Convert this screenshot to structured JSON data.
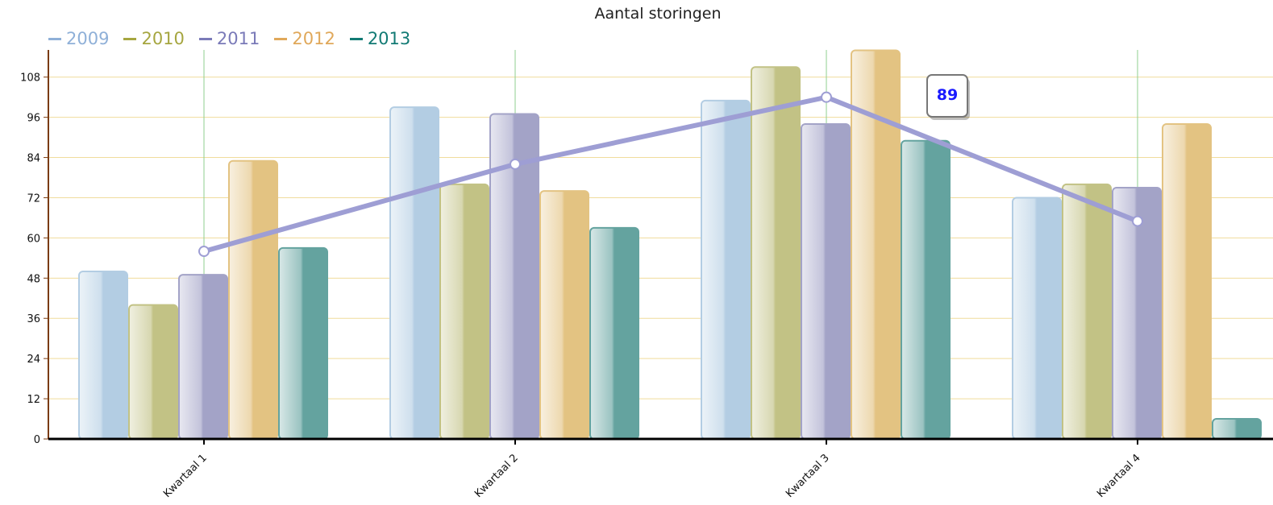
{
  "chart_data": {
    "type": "bar",
    "title": "Aantal storingen",
    "categories": [
      "Kwartaal 1",
      "Kwartaal 2",
      "Kwartaal 3",
      "Kwartaal 4"
    ],
    "y_ticks": [
      "0",
      "12",
      "24",
      "36",
      "48",
      "60",
      "72",
      "84",
      "96",
      "108"
    ],
    "ylim": [
      0,
      116
    ],
    "grid": true,
    "legend_position": "top-left",
    "series": [
      {
        "name": "2009",
        "color": "#b3cde3",
        "values": [
          50,
          99,
          101,
          72
        ]
      },
      {
        "name": "2010",
        "color": "#c2c285",
        "values": [
          40,
          76,
          111,
          76
        ]
      },
      {
        "name": "2011",
        "color": "#a3a3c7",
        "values": [
          49,
          97,
          94,
          75
        ]
      },
      {
        "name": "2012",
        "color": "#e3c382",
        "values": [
          83,
          74,
          116,
          94
        ]
      },
      {
        "name": "2013",
        "color": "#64a39f",
        "values": [
          57,
          63,
          89,
          6
        ]
      }
    ],
    "line_series": {
      "color": "#9e9ed4",
      "values": [
        56,
        82,
        102,
        65
      ]
    },
    "tooltip": {
      "label": "89"
    },
    "legend_text_colors": [
      "#8fb0d8",
      "#a6a640",
      "#7a7ab8",
      "#e0a85a",
      "#127a74"
    ]
  }
}
